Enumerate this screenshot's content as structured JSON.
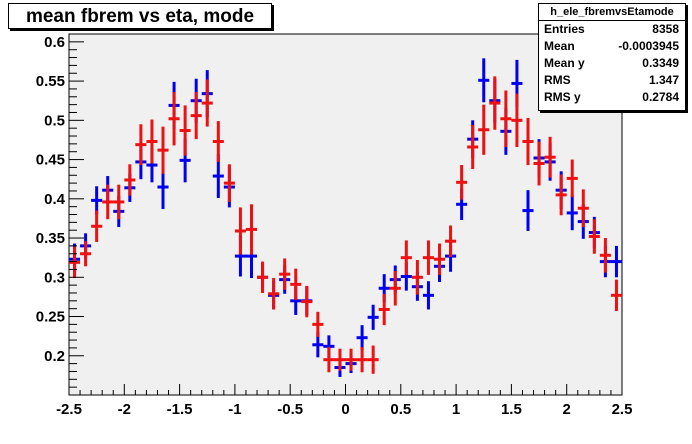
{
  "title": "mean fbrem vs eta, mode",
  "stats": {
    "name": "h_ele_fbremvsEtamode",
    "rows": [
      {
        "label": "Entries",
        "value": "8358"
      },
      {
        "label": "Mean",
        "value": "-0.0003945"
      },
      {
        "label": "Mean y",
        "value": "0.3349"
      },
      {
        "label": "RMS",
        "value": "1.347"
      },
      {
        "label": "RMS y",
        "value": "0.2784"
      }
    ]
  },
  "chart_data": {
    "type": "scatter",
    "title": "mean fbrem vs eta, mode",
    "xlabel": "",
    "ylabel": "",
    "xlim": [
      -2.5,
      2.5
    ],
    "ylim": [
      0.15,
      0.61
    ],
    "x_ticks": [
      "-2.5",
      "-2",
      "-1.5",
      "-1",
      "-0.5",
      "0",
      "0.5",
      "1",
      "1.5",
      "2",
      "2.5"
    ],
    "y_ticks": [
      "0.2",
      "0.25",
      "0.3",
      "0.35",
      "0.4",
      "0.45",
      "0.5",
      "0.55",
      "0.6"
    ],
    "bin_width": 0.1,
    "colors": {
      "frame_bg": "#f0f0f0",
      "series_blue": "#0000ee",
      "series_red": "#ee1111"
    },
    "series": [
      {
        "color": "#0000ee",
        "x": [
          -2.45,
          -2.35,
          -2.25,
          -2.15,
          -2.05,
          -1.95,
          -1.85,
          -1.75,
          -1.65,
          -1.55,
          -1.45,
          -1.35,
          -1.25,
          -1.15,
          -1.05,
          -0.95,
          -0.85,
          -0.75,
          -0.65,
          -0.55,
          -0.45,
          -0.35,
          -0.25,
          -0.15,
          -0.05,
          0.05,
          0.15,
          0.25,
          0.35,
          0.45,
          0.55,
          0.65,
          0.75,
          0.85,
          0.95,
          1.05,
          1.15,
          1.25,
          1.35,
          1.45,
          1.55,
          1.65,
          1.75,
          1.85,
          1.95,
          2.05,
          2.15,
          2.25,
          2.35,
          2.45
        ],
        "y": [
          0.323,
          0.34,
          0.398,
          0.411,
          0.384,
          0.414,
          0.447,
          0.443,
          0.415,
          0.519,
          0.449,
          0.525,
          0.534,
          0.429,
          0.415,
          0.327,
          0.327,
          0.3,
          0.277,
          0.297,
          0.27,
          0.27,
          0.214,
          0.212,
          0.185,
          0.19,
          0.223,
          0.249,
          0.286,
          0.297,
          0.301,
          0.288,
          0.277,
          0.314,
          0.327,
          0.393,
          0.476,
          0.551,
          0.525,
          0.486,
          0.547,
          0.385,
          0.452,
          0.447,
          0.411,
          0.382,
          0.371,
          0.357,
          0.32,
          0.32
        ],
        "err": [
          0.02,
          0.016,
          0.018,
          0.018,
          0.02,
          0.018,
          0.022,
          0.022,
          0.028,
          0.03,
          0.028,
          0.028,
          0.03,
          0.028,
          0.026,
          0.026,
          0.028,
          0.018,
          0.018,
          0.018,
          0.018,
          0.018,
          0.016,
          0.014,
          0.012,
          0.012,
          0.016,
          0.016,
          0.018,
          0.018,
          0.018,
          0.018,
          0.018,
          0.02,
          0.02,
          0.02,
          0.024,
          0.028,
          0.028,
          0.03,
          0.03,
          0.026,
          0.024,
          0.024,
          0.024,
          0.022,
          0.022,
          0.02,
          0.02,
          0.02
        ]
      },
      {
        "color": "#ee1111",
        "x": [
          -2.45,
          -2.35,
          -2.25,
          -2.15,
          -2.05,
          -1.95,
          -1.85,
          -1.75,
          -1.65,
          -1.55,
          -1.45,
          -1.35,
          -1.25,
          -1.15,
          -1.05,
          -0.95,
          -0.85,
          -0.75,
          -0.65,
          -0.55,
          -0.45,
          -0.35,
          -0.25,
          -0.15,
          -0.05,
          0.05,
          0.15,
          0.25,
          0.35,
          0.45,
          0.55,
          0.65,
          0.75,
          0.85,
          0.95,
          1.05,
          1.15,
          1.25,
          1.35,
          1.45,
          1.55,
          1.65,
          1.75,
          1.85,
          1.95,
          2.05,
          2.15,
          2.25,
          2.35,
          2.45
        ],
        "y": [
          0.319,
          0.33,
          0.365,
          0.396,
          0.396,
          0.424,
          0.469,
          0.473,
          0.462,
          0.502,
          0.487,
          0.506,
          0.522,
          0.473,
          0.42,
          0.359,
          0.361,
          0.3,
          0.279,
          0.304,
          0.291,
          0.269,
          0.24,
          0.195,
          0.195,
          0.195,
          0.195,
          0.195,
          0.259,
          0.286,
          0.325,
          0.3,
          0.325,
          0.323,
          0.346,
          0.421,
          0.466,
          0.488,
          0.522,
          0.502,
          0.5,
          0.473,
          0.445,
          0.453,
          0.405,
          0.426,
          0.388,
          0.352,
          0.328,
          0.277
        ],
        "err": [
          0.02,
          0.016,
          0.02,
          0.022,
          0.022,
          0.02,
          0.026,
          0.028,
          0.03,
          0.034,
          0.032,
          0.03,
          0.03,
          0.026,
          0.024,
          0.03,
          0.032,
          0.02,
          0.02,
          0.02,
          0.02,
          0.02,
          0.016,
          0.016,
          0.014,
          0.014,
          0.016,
          0.018,
          0.02,
          0.022,
          0.022,
          0.022,
          0.022,
          0.02,
          0.02,
          0.022,
          0.028,
          0.032,
          0.034,
          0.036,
          0.034,
          0.03,
          0.028,
          0.026,
          0.026,
          0.024,
          0.024,
          0.022,
          0.022,
          0.02
        ]
      }
    ]
  }
}
